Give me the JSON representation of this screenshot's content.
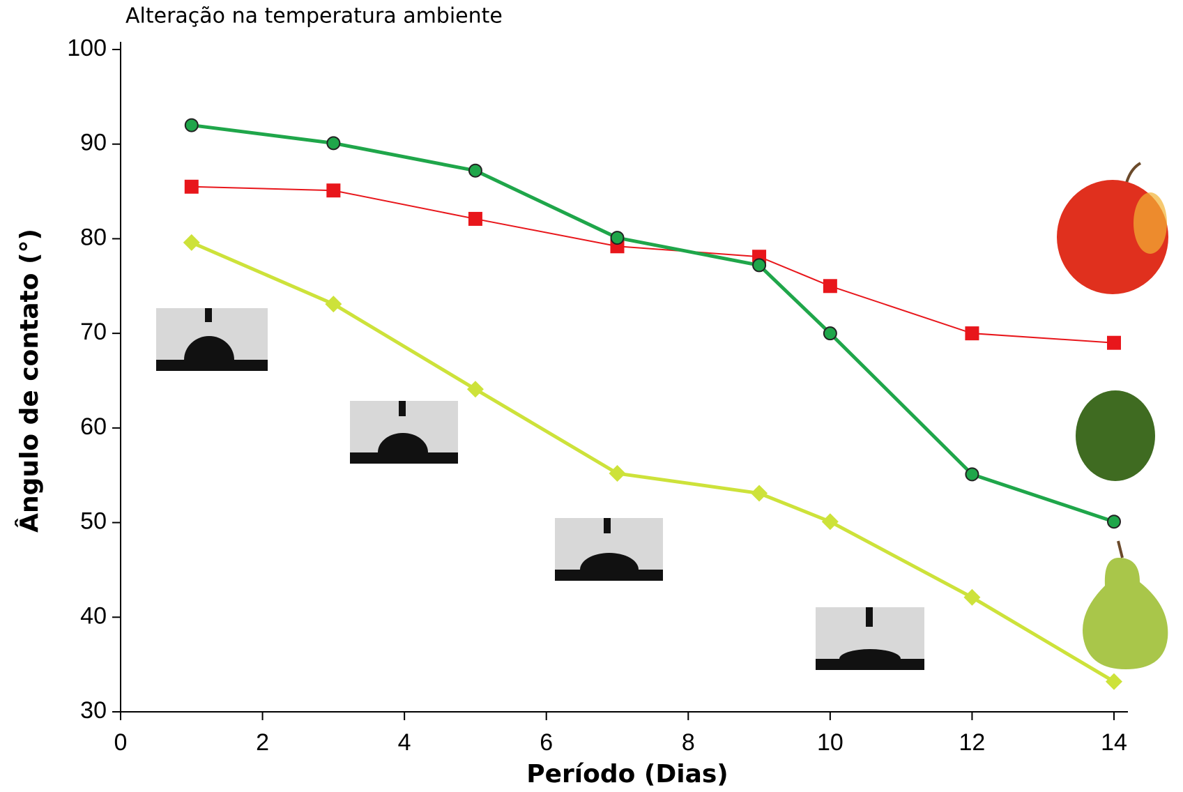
{
  "chart_data": {
    "type": "line",
    "title": "Alteração na temperatura ambiente",
    "x_label": "Período (Dias)",
    "y_label": "Ângulo de contato (°)",
    "x": [
      1,
      3,
      5,
      7,
      9,
      10,
      12,
      14
    ],
    "series": [
      {
        "color": "#e8161b",
        "marker": "square",
        "values": [
          85.5,
          85.1,
          82.1,
          79.2,
          78.1,
          75,
          70,
          69
        ]
      },
      {
        "color": "#1fa64a",
        "marker": "circle",
        "values": [
          92,
          90.1,
          87.2,
          80.1,
          77.2,
          70,
          55.1,
          50.1
        ]
      },
      {
        "color": "#cde23a",
        "marker": "diamond",
        "values": [
          79.6,
          73.1,
          64.1,
          55.2,
          53.1,
          50.1,
          42.1,
          33.2
        ]
      }
    ],
    "xlim": [
      0,
      14
    ],
    "xticks": [
      0,
      2,
      4,
      6,
      8,
      10,
      12,
      14
    ],
    "ylim": [
      30,
      100
    ],
    "yticks": [
      30,
      40,
      50,
      60,
      70,
      80,
      90,
      100
    ]
  }
}
